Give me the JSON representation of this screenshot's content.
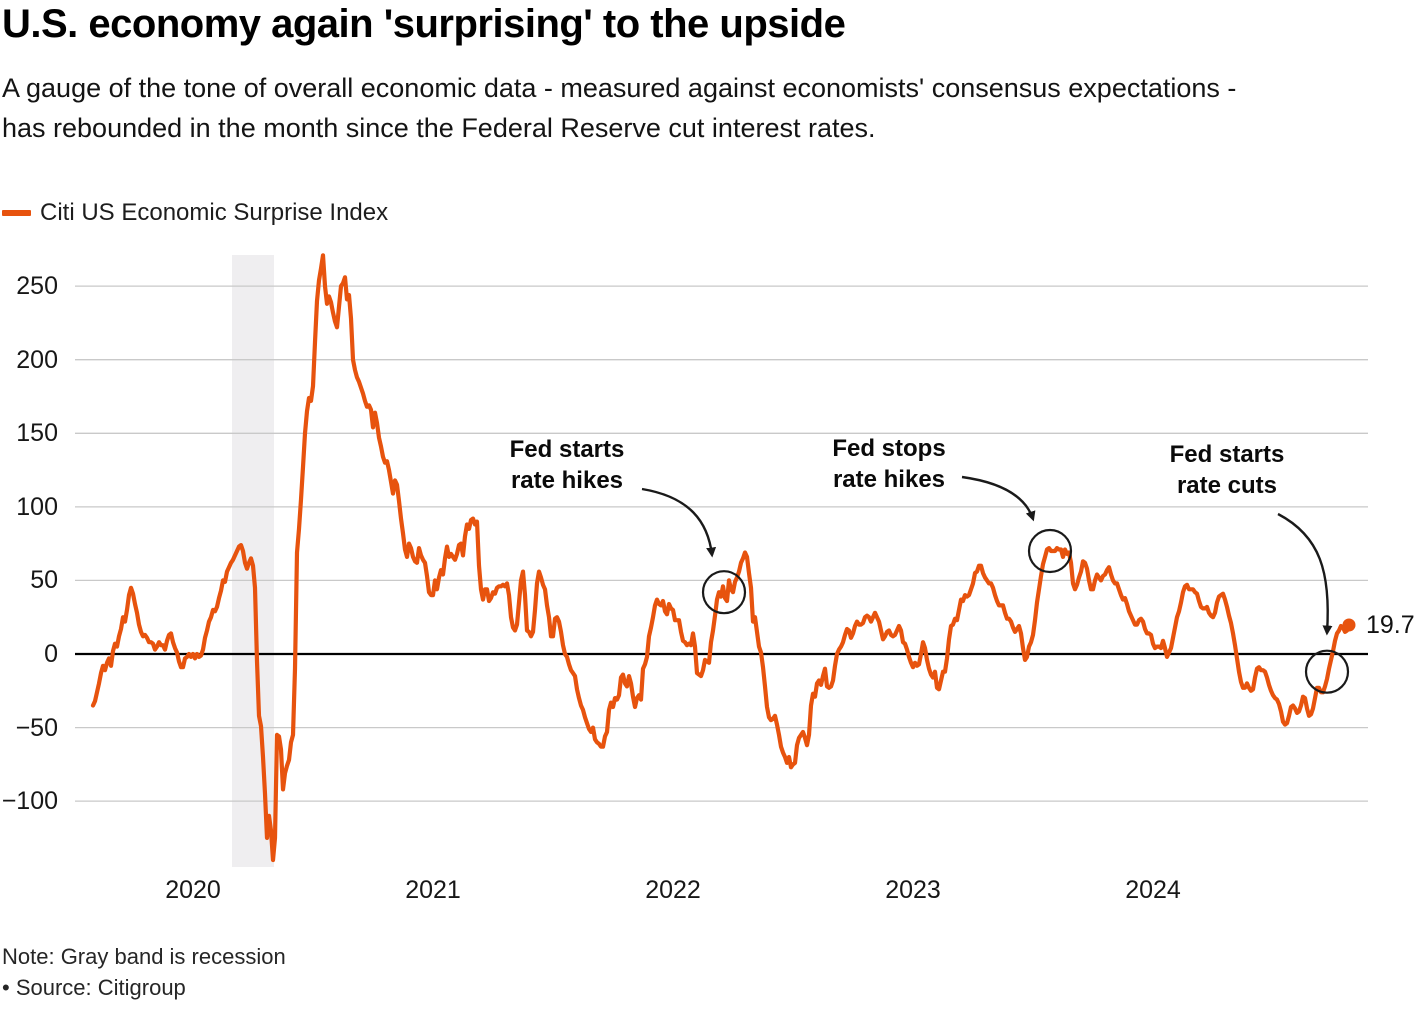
{
  "header": {
    "title": "U.S. economy again 'surprising' to the upside",
    "subtitle": "A gauge of the tone of overall economic data - measured against economists' consensus expectations - has rebounded in the month since the Federal Reserve cut interest rates."
  },
  "legend": {
    "label": "Citi US Economic Surprise Index",
    "color": "#e7530e"
  },
  "annotations": [
    {
      "line1": "Fed starts",
      "line2": "rate hikes"
    },
    {
      "line1": "Fed stops",
      "line2": "rate hikes"
    },
    {
      "line1": "Fed starts",
      "line2": "rate cuts"
    }
  ],
  "last_value_label": "19.7",
  "footer": {
    "note": "Note: Gray band is recession",
    "source": "• Source: Citigroup"
  },
  "chart_data": {
    "type": "line",
    "title": "Citi US Economic Surprise Index",
    "x_axis": {
      "unit": "year",
      "ticks": [
        2020,
        2021,
        2022,
        2023,
        2024
      ]
    },
    "y_axis": {
      "ticks": [
        250,
        200,
        150,
        100,
        50,
        0,
        -50,
        -100
      ],
      "range": [
        -145,
        275
      ]
    },
    "grid": true,
    "zero_line": true,
    "recession_band": {
      "x_start": 2020.1625,
      "x_end": 2020.3375,
      "label": "recession"
    },
    "annotations": [
      {
        "text": "Fed starts rate hikes",
        "x": 2022.2125,
        "y": 42
      },
      {
        "text": "Fed stops rate hikes",
        "x": 2023.5708,
        "y": 70
      },
      {
        "text": "Fed starts rate cuts",
        "x": 2024.725,
        "y": -12
      }
    ],
    "series": [
      {
        "name": "Citi US Economic Surprise Index",
        "color": "#e7530e",
        "x_start": 2019.5833,
        "x_step": 0.0083333,
        "last_value": 19.7,
        "values": [
          -35,
          -32,
          -26,
          -20,
          -13,
          -8,
          -11,
          -6,
          -3,
          -8,
          2,
          7,
          5,
          12,
          17,
          25,
          22,
          30,
          40,
          45,
          41,
          34,
          28,
          20,
          15,
          12,
          13,
          11,
          8,
          8,
          7,
          3,
          5,
          8,
          6,
          6,
          3,
          9,
          13,
          14,
          8,
          4,
          1,
          -5,
          -9,
          -9,
          -3,
          -2,
          0,
          -2,
          0,
          -3,
          0,
          -2,
          -1,
          3,
          11,
          16,
          22,
          25,
          30,
          29,
          32,
          38,
          43,
          50,
          49,
          56,
          59,
          62,
          64,
          67,
          70,
          73,
          74,
          70,
          62,
          58,
          62,
          65,
          60,
          45,
          -5,
          -42,
          -49,
          -70,
          -95,
          -125,
          -110,
          -120,
          -140,
          -125,
          -55,
          -56,
          -65,
          -92,
          -81,
          -76,
          -72,
          -60,
          -55,
          -10,
          69,
          85,
          105,
          127,
          150,
          165,
          174,
          172,
          182,
          212,
          240,
          254,
          262,
          271,
          250,
          238,
          243,
          239,
          232,
          226,
          222,
          236,
          250,
          252,
          256,
          241,
          244,
          228,
          200,
          193,
          188,
          185,
          181,
          177,
          172,
          168,
          169,
          166,
          154,
          164,
          157,
          147,
          141,
          134,
          130,
          131,
          125,
          117,
          109,
          118,
          115,
          104,
          92,
          82,
          71,
          66,
          75,
          72,
          66,
          63,
          62,
          72,
          67,
          64,
          62,
          53,
          42,
          40,
          40,
          50,
          44,
          52,
          57,
          54,
          65,
          73,
          66,
          68,
          66,
          64,
          68,
          74,
          75,
          67,
          80,
          88,
          85,
          91,
          92,
          88,
          90,
          60,
          44,
          37,
          44,
          44,
          36,
          38,
          42,
          41,
          45,
          46,
          46,
          47,
          46,
          48,
          40,
          25,
          18,
          16,
          20,
          35,
          50,
          56,
          40,
          16,
          15,
          12,
          15,
          30,
          48,
          56,
          52,
          47,
          44,
          33,
          25,
          12,
          12,
          24,
          25,
          22,
          15,
          6,
          0,
          -2,
          -7,
          -11,
          -13,
          -15,
          -24,
          -30,
          -35,
          -38,
          -43,
          -47,
          -51,
          -53,
          -50,
          -58,
          -60,
          -61,
          -63,
          -63,
          -56,
          -53,
          -38,
          -33,
          -36,
          -30,
          -31,
          -28,
          -16,
          -14,
          -20,
          -22,
          -15,
          -20,
          -29,
          -36,
          -30,
          -28,
          -31,
          -10,
          -7,
          -2,
          12,
          18,
          25,
          33,
          37,
          34,
          33,
          36,
          29,
          27,
          34,
          31,
          30,
          23,
          23,
          23,
          15,
          9,
          8,
          6,
          7,
          6,
          14,
          5,
          -13,
          -14,
          -15,
          -11,
          -4,
          -5,
          -6,
          8,
          16,
          26,
          37,
          42,
          39,
          46,
          38,
          36,
          50,
          44,
          42,
          49,
          52,
          56,
          62,
          65,
          69,
          66,
          55,
          45,
          22,
          25,
          15,
          5,
          1,
          -9,
          -22,
          -36,
          -43,
          -45,
          -44,
          -42,
          -48,
          -55,
          -63,
          -67,
          -70,
          -74,
          -70,
          -77,
          -75,
          -74,
          -62,
          -57,
          -55,
          -53,
          -57,
          -62,
          -55,
          -35,
          -27,
          -29,
          -20,
          -18,
          -21,
          -15,
          -10,
          -22,
          -23,
          -22,
          -18,
          -8,
          0,
          3,
          5,
          8,
          13,
          17,
          16,
          11,
          14,
          19,
          22,
          20,
          20,
          21,
          25,
          26,
          25,
          22,
          25,
          28,
          25,
          22,
          16,
          10,
          12,
          15,
          16,
          13,
          12,
          13,
          16,
          19,
          16,
          8,
          7,
          3,
          -2,
          -6,
          -9,
          -6,
          -8,
          -7,
          0,
          8,
          4,
          -4,
          -10,
          -14,
          -16,
          -12,
          -23,
          -24,
          -18,
          -12,
          -12,
          -3,
          10,
          19,
          20,
          24,
          23,
          30,
          37,
          36,
          40,
          39,
          40,
          44,
          48,
          55,
          56,
          60,
          60,
          55,
          52,
          50,
          48,
          48,
          45,
          40,
          36,
          33,
          33,
          33,
          28,
          24,
          24,
          22,
          18,
          15,
          17,
          19,
          14,
          4,
          -4,
          -2,
          5,
          8,
          13,
          23,
          35,
          44,
          53,
          61,
          66,
          71,
          72,
          70,
          70,
          70,
          72,
          71,
          71,
          66,
          71,
          68,
          69,
          62,
          48,
          44,
          47,
          52,
          56,
          63,
          62,
          58,
          50,
          44,
          44,
          50,
          54,
          52,
          50,
          53,
          54,
          57,
          59,
          54,
          50,
          48,
          48,
          44,
          40,
          37,
          38,
          34,
          29,
          26,
          23,
          20,
          20,
          23,
          24,
          22,
          17,
          14,
          14,
          13,
          7,
          4,
          5,
          5,
          4,
          9,
          4,
          -2,
          1,
          4,
          11,
          18,
          25,
          29,
          35,
          42,
          46,
          47,
          44,
          44,
          44,
          42,
          41,
          36,
          32,
          31,
          31,
          32,
          28,
          26,
          25,
          28,
          35,
          39,
          40,
          41,
          37,
          32,
          26,
          21,
          14,
          6,
          -3,
          -12,
          -19,
          -23,
          -23,
          -20,
          -23,
          -25,
          -24,
          -16,
          -10,
          -9,
          -11,
          -11,
          -12,
          -16,
          -21,
          -25,
          -28,
          -30,
          -31,
          -34,
          -39,
          -46,
          -48,
          -47,
          -42,
          -36,
          -35,
          -37,
          -40,
          -39,
          -35,
          -29,
          -30,
          -37,
          -42,
          -41,
          -37,
          -30,
          -23,
          -23,
          -26,
          -26,
          -22,
          -17,
          -10,
          -4,
          2,
          9,
          14,
          16,
          19,
          18,
          15,
          16,
          19.7
        ]
      }
    ]
  }
}
